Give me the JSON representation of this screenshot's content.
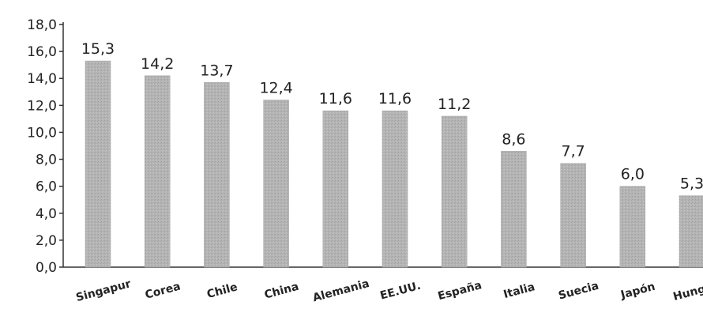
{
  "chart_data": {
    "type": "bar",
    "categories": [
      "Singapur",
      "Corea",
      "Chile",
      "China",
      "Alemania",
      "EE.UU.",
      "España",
      "Italia",
      "Suecia",
      "Japón",
      "Hungría"
    ],
    "values": [
      15.3,
      14.2,
      13.7,
      12.4,
      11.6,
      11.6,
      11.2,
      8.6,
      7.7,
      6.0,
      5.3
    ],
    "data_labels": [
      "15,3",
      "14,2",
      "13,7",
      "12,4",
      "11,6",
      "11,6",
      "11,2",
      "8,6",
      "7,7",
      "6,0",
      "5,3"
    ],
    "y_ticks": [
      "0,0",
      "2,0",
      "4,0",
      "6,0",
      "8,0",
      "10,0",
      "12,0",
      "14,0",
      "16,0",
      "18,0"
    ],
    "ylim": [
      0,
      18
    ],
    "grid": false,
    "bar_color": "#b0b0b0"
  }
}
